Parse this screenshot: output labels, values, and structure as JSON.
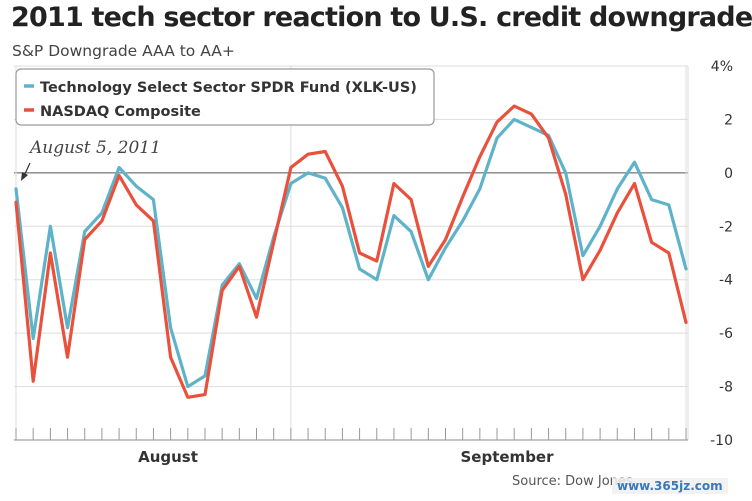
{
  "title": "2011 tech sector reaction to U.S. credit downgrade",
  "subtitle": "S&P Downgrade AAA to AA+",
  "source": "Source: Dow Jones",
  "watermark": "www.365jz.com",
  "annotation": "August 5, 2011",
  "chart_data": {
    "type": "line",
    "categories": [
      "August",
      "September"
    ],
    "y_ticks": [
      "4%",
      "2",
      "0",
      "-2",
      "-4",
      "-6",
      "-8",
      "-10"
    ],
    "ylim": [
      -10,
      4
    ],
    "grid": true,
    "legend_position": "top-left",
    "x": [
      0,
      1,
      2,
      3,
      4,
      5,
      6,
      7,
      8,
      9,
      10,
      11,
      12,
      13,
      14,
      15,
      16,
      17,
      18,
      19,
      20,
      21,
      22,
      23,
      24,
      25,
      26,
      27,
      28,
      29,
      30,
      31,
      32,
      33,
      34,
      35,
      36,
      37,
      38,
      39
    ],
    "series": [
      {
        "name": "Technology Select Sector SPDR Fund (XLK-US)",
        "color": "#5fb3c9",
        "values": [
          -0.6,
          -6.2,
          -2.0,
          -5.8,
          -2.2,
          -1.5,
          0.2,
          -0.5,
          -1.0,
          -5.8,
          -8.0,
          -7.6,
          -4.2,
          -3.4,
          -4.7,
          -2.4,
          -0.4,
          0.0,
          -0.2,
          -1.3,
          -3.6,
          -4.0,
          -1.6,
          -2.2,
          -4.0,
          -2.8,
          -1.8,
          -0.6,
          1.3,
          2.0,
          1.7,
          1.4,
          0.0,
          -3.1,
          -2.0,
          -0.6,
          0.4,
          -1.0,
          -1.2,
          -3.6
        ]
      },
      {
        "name": "NASDAQ Composite",
        "color": "#e9513c",
        "values": [
          -1.1,
          -7.8,
          -3.0,
          -6.9,
          -2.5,
          -1.8,
          -0.1,
          -1.2,
          -1.8,
          -6.9,
          -8.4,
          -8.3,
          -4.4,
          -3.5,
          -5.4,
          -2.6,
          0.2,
          0.7,
          0.8,
          -0.5,
          -3.0,
          -3.3,
          -0.4,
          -1.0,
          -3.5,
          -2.5,
          -0.9,
          0.6,
          1.9,
          2.5,
          2.2,
          1.3,
          -0.8,
          -4.0,
          -2.9,
          -1.5,
          -0.4,
          -2.6,
          -3.0,
          -5.6
        ]
      }
    ]
  }
}
